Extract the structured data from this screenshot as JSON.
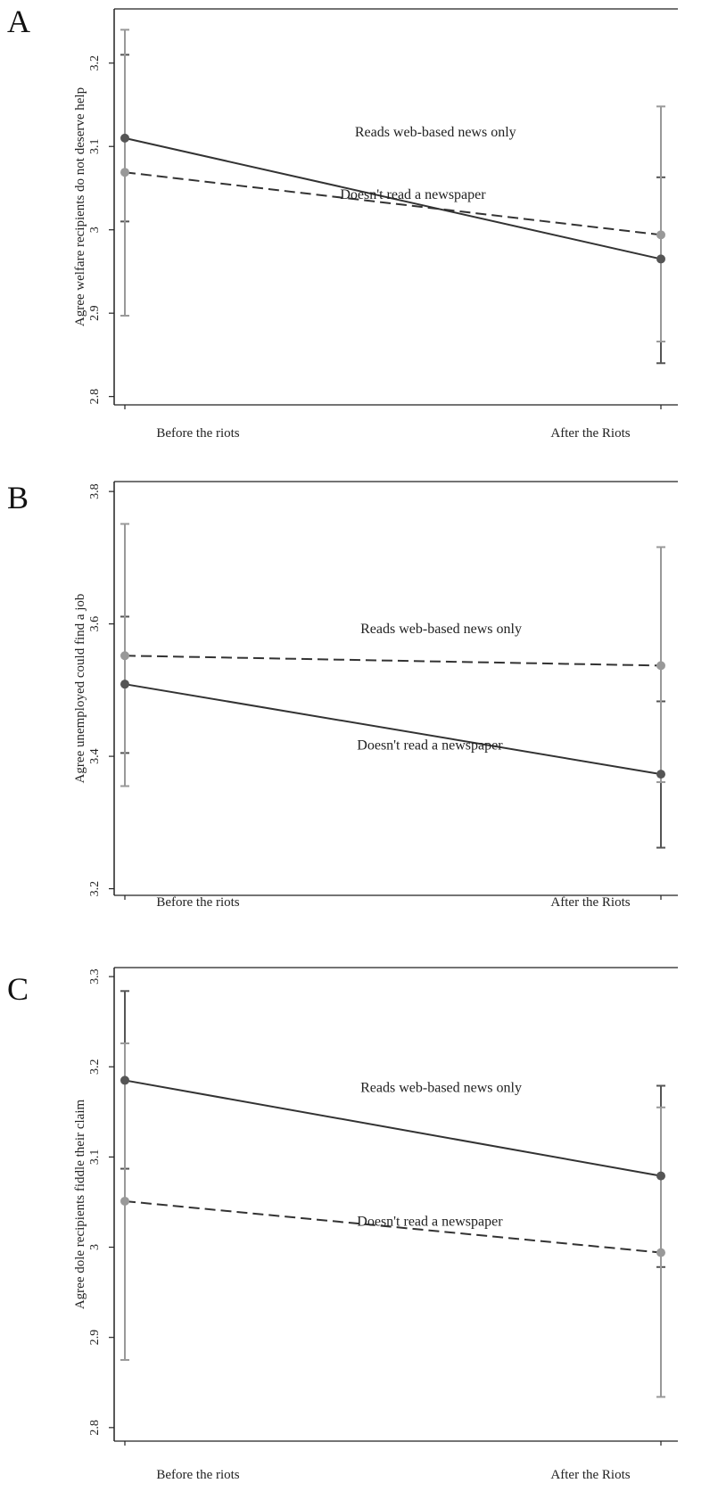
{
  "chart_data": [
    {
      "panel_letter": "A",
      "type": "line",
      "ylabel": "Agree welfare recipients do not deserve help",
      "categories": [
        "Before the riots",
        "After the Riots"
      ],
      "yticks": [
        "2.8",
        "2.9",
        "3",
        "3.1",
        "3.2"
      ],
      "ylim": [
        2.79,
        3.265
      ],
      "series": [
        {
          "style": "solid",
          "color": "#555555",
          "values": [
            3.11,
            2.965
          ],
          "ci_low": [
            3.01,
            2.84
          ],
          "ci_high": [
            3.21,
            3.063
          ]
        },
        {
          "style": "dashed",
          "color": "#999999",
          "values": [
            3.069,
            2.994
          ],
          "ci_low": [
            2.897,
            2.866
          ],
          "ci_high": [
            3.24,
            3.148
          ]
        }
      ],
      "annotations": [
        {
          "text": "Reads web-based news only",
          "x": 0.57,
          "y": 3.112
        },
        {
          "text": "Doesn't read a newspaper",
          "x": 0.53,
          "y": 3.037
        }
      ]
    },
    {
      "panel_letter": "B",
      "type": "line",
      "ylabel": "Agree unemployed could find a job",
      "categories": [
        "Before the riots",
        "After the Riots"
      ],
      "yticks": [
        "3.2",
        "3.4",
        "3.6",
        "3.8"
      ],
      "ylim": [
        3.19,
        3.815
      ],
      "series": [
        {
          "style": "solid",
          "color": "#555555",
          "values": [
            3.509,
            3.373
          ],
          "ci_low": [
            3.405,
            3.262
          ],
          "ci_high": [
            3.611,
            3.483
          ]
        },
        {
          "style": "dashed",
          "color": "#999999",
          "values": [
            3.552,
            3.537
          ],
          "ci_low": [
            3.355,
            3.361
          ],
          "ci_high": [
            3.751,
            3.716
          ]
        }
      ],
      "annotations": [
        {
          "text": "Reads web-based news only",
          "x": 0.58,
          "y": 3.586
        },
        {
          "text": "Doesn't read a newspaper",
          "x": 0.56,
          "y": 3.41
        }
      ]
    },
    {
      "panel_letter": "C",
      "type": "line",
      "ylabel": "Agree dole recipients fiddle their claim",
      "categories": [
        "Before the riots",
        "After the Riots"
      ],
      "yticks": [
        "2.8",
        "2.9",
        "3",
        "3.1",
        "3.2",
        "3.3"
      ],
      "ylim": [
        2.785,
        3.31
      ],
      "series": [
        {
          "style": "solid",
          "color": "#555555",
          "values": [
            3.185,
            3.079
          ],
          "ci_low": [
            3.087,
            2.978
          ],
          "ci_high": [
            3.284,
            3.179
          ]
        },
        {
          "style": "dashed",
          "color": "#999999",
          "values": [
            3.051,
            2.994
          ],
          "ci_low": [
            2.875,
            2.834
          ],
          "ci_high": [
            3.226,
            3.155
          ]
        }
      ],
      "annotations": [
        {
          "text": "Reads web-based news only",
          "x": 0.58,
          "y": 3.172
        },
        {
          "text": "Doesn't read a newspaper",
          "x": 0.56,
          "y": 3.024
        }
      ]
    }
  ]
}
